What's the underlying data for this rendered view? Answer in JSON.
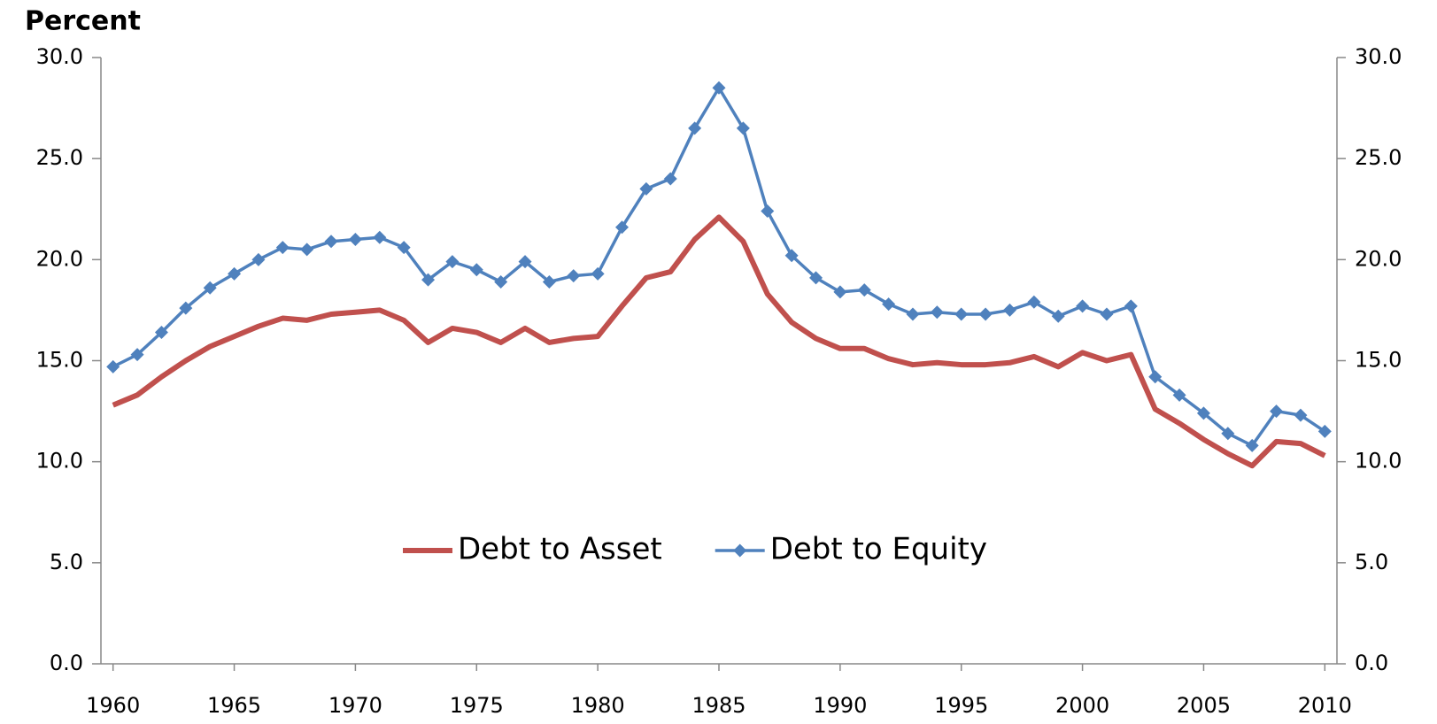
{
  "chart_data": {
    "type": "line",
    "title": "Percent",
    "x": [
      1960,
      1961,
      1962,
      1963,
      1964,
      1965,
      1966,
      1967,
      1968,
      1969,
      1970,
      1971,
      1972,
      1973,
      1974,
      1975,
      1976,
      1977,
      1978,
      1979,
      1980,
      1981,
      1982,
      1983,
      1984,
      1985,
      1986,
      1987,
      1988,
      1989,
      1990,
      1991,
      1992,
      1993,
      1994,
      1995,
      1996,
      1997,
      1998,
      1999,
      2000,
      2001,
      2002,
      2003,
      2004,
      2005,
      2006,
      2007,
      2008,
      2009,
      2010
    ],
    "series": [
      {
        "name": "Debt to Asset",
        "color": "#c0504d",
        "marker": "none",
        "values": [
          12.8,
          13.3,
          14.2,
          15.0,
          15.7,
          16.2,
          16.7,
          17.1,
          17.0,
          17.3,
          17.4,
          17.5,
          17.0,
          15.9,
          16.6,
          16.4,
          15.9,
          16.6,
          15.9,
          16.1,
          16.2,
          17.7,
          19.1,
          19.4,
          21.0,
          22.1,
          20.9,
          18.3,
          16.9,
          16.1,
          15.6,
          15.6,
          15.1,
          14.8,
          14.9,
          14.8,
          14.8,
          14.9,
          15.2,
          14.7,
          15.4,
          15.0,
          15.3,
          12.6,
          11.9,
          11.1,
          10.4,
          9.8,
          11.0,
          10.9,
          10.3
        ]
      },
      {
        "name": "Debt to Equity",
        "color": "#4f81bd",
        "marker": "diamond",
        "values": [
          14.7,
          15.3,
          16.4,
          17.6,
          18.6,
          19.3,
          20.0,
          20.6,
          20.5,
          20.9,
          21.0,
          21.1,
          20.6,
          19.0,
          19.9,
          19.5,
          18.9,
          19.9,
          18.9,
          19.2,
          19.3,
          21.6,
          23.5,
          24.0,
          26.5,
          28.5,
          26.5,
          22.4,
          20.2,
          19.1,
          18.4,
          18.5,
          17.8,
          17.3,
          17.4,
          17.3,
          17.3,
          17.5,
          17.9,
          17.2,
          17.7,
          17.3,
          17.7,
          14.2,
          13.3,
          12.4,
          11.4,
          10.8,
          12.5,
          12.3,
          11.5
        ]
      }
    ],
    "xlim": [
      1959.5,
      2010.5
    ],
    "xticks": [
      1960,
      1965,
      1970,
      1975,
      1980,
      1985,
      1990,
      1995,
      2000,
      2005,
      2010
    ],
    "ylim": [
      0,
      30
    ],
    "yticks": [
      {
        "value": 0,
        "label": "0.0"
      },
      {
        "value": 5,
        "label": "5.0"
      },
      {
        "value": 10,
        "label": "10.0"
      },
      {
        "value": 15,
        "label": "15.0"
      },
      {
        "value": 20,
        "label": "20.0"
      },
      {
        "value": 25,
        "label": "25.0"
      },
      {
        "value": 30,
        "label": "30.0"
      }
    ],
    "y2lim": [
      0,
      30
    ],
    "y2ticks": [
      {
        "value": 0,
        "label": "0.0"
      },
      {
        "value": 5,
        "label": "5.0"
      },
      {
        "value": 10,
        "label": "10.0"
      },
      {
        "value": 15,
        "label": "15.0"
      },
      {
        "value": 20,
        "label": "20.0"
      },
      {
        "value": 25,
        "label": "25.0"
      },
      {
        "value": 30,
        "label": "30.0"
      }
    ],
    "grid": false,
    "legend": "center"
  }
}
